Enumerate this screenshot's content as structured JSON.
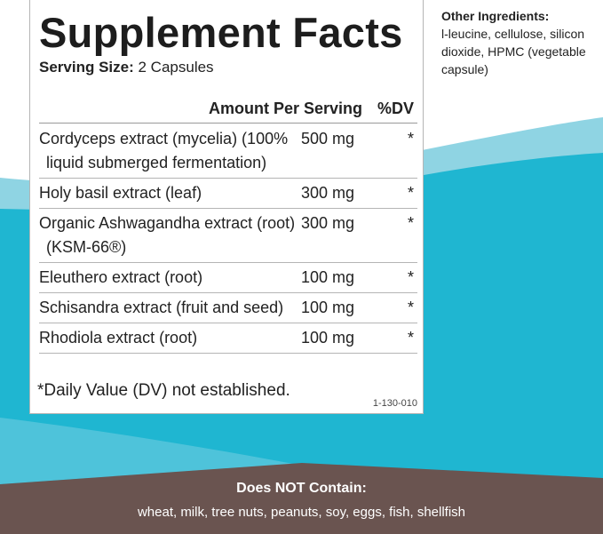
{
  "panel": {
    "title": "Supplement Facts",
    "serving_label": "Serving Size:",
    "serving_value": "2 Capsules",
    "header": {
      "amount": "Amount Per Serving",
      "dv": "%DV"
    },
    "rows": [
      [
        "Cordyceps extract (mycelia) (100% liquid submerged fermentation)",
        "500 mg",
        "*"
      ],
      [
        "Holy basil extract (leaf)",
        "300 mg",
        "*"
      ],
      [
        "Organic Ashwagandha extract (root) (KSM-66®)",
        "300 mg",
        "*"
      ],
      [
        "Eleuthero extract (root)",
        "100 mg",
        "*"
      ],
      [
        "Schisandra extract (fruit and seed)",
        "100 mg",
        "*"
      ],
      [
        "Rhodiola extract (root)",
        "100 mg",
        "*"
      ]
    ],
    "footnote": "*Daily Value (DV) not established.",
    "code": "1-130-010"
  },
  "other_ingredients": {
    "title": "Other Ingredients:",
    "text": "l-leucine, cellulose, silicon dioxide, HPMC (vegetable capsule)"
  },
  "does_not_contain": {
    "title": "Does NOT Contain:",
    "text": "wheat, milk, tree nuts, peanuts, soy, eggs, fish, shellfish"
  }
}
